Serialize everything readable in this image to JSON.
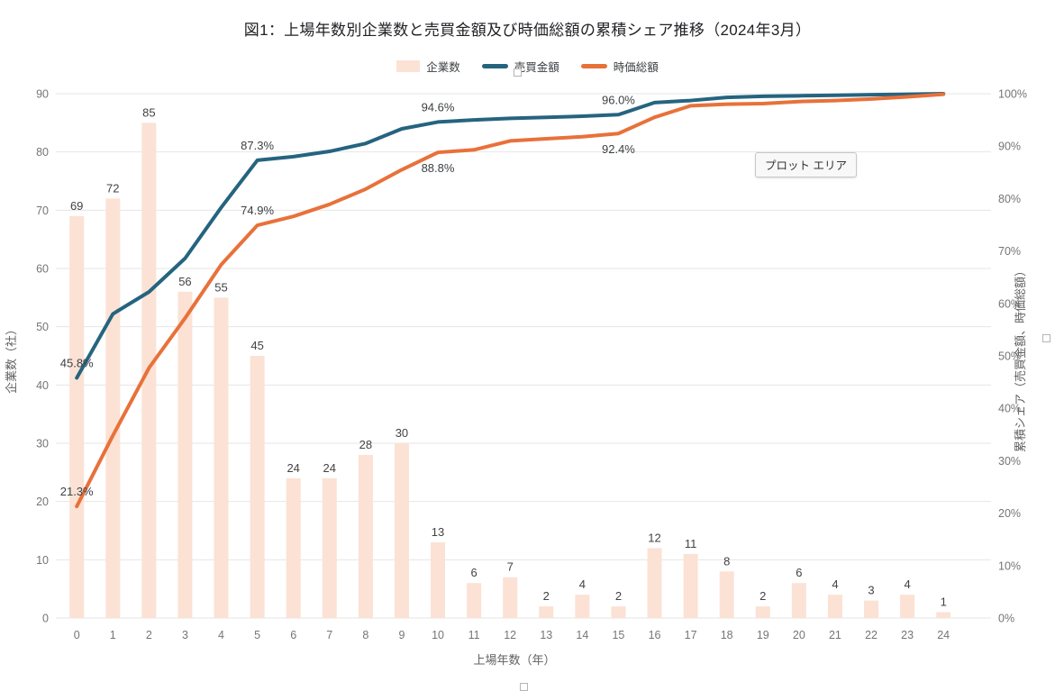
{
  "tooltip": {
    "label": "プロット エリア"
  },
  "chart_data": {
    "type": "combo-bar-line",
    "title": "図1：上場年数別企業数と売買金額及び時価総額の累積シェア推移（2024年3月）",
    "categories": [
      0,
      1,
      2,
      3,
      4,
      5,
      6,
      7,
      8,
      9,
      10,
      11,
      12,
      13,
      14,
      15,
      16,
      17,
      18,
      19,
      20,
      21,
      22,
      23,
      24
    ],
    "x_axis": {
      "title": "上場年数（年）"
    },
    "left_axis": {
      "title": "企業数（社）",
      "min": 0,
      "max": 90,
      "step": 10,
      "tick_labels": [
        "0",
        "10",
        "20",
        "30",
        "40",
        "50",
        "60",
        "70",
        "80",
        "90"
      ]
    },
    "right_axis": {
      "title": "累積シェア（売買金額、時価総額）",
      "min": 0,
      "max": 100,
      "step": 10,
      "tick_labels": [
        "0%",
        "10%",
        "20%",
        "30%",
        "40%",
        "50%",
        "60%",
        "70%",
        "80%",
        "90%",
        "100%"
      ]
    },
    "grid": true,
    "bar_series": {
      "name": "企業数",
      "color": "#fbe2d5",
      "values": [
        69,
        72,
        85,
        56,
        55,
        45,
        24,
        24,
        28,
        30,
        13,
        6,
        7,
        2,
        4,
        2,
        12,
        11,
        8,
        2,
        6,
        4,
        3,
        4,
        1
      ]
    },
    "line_series": [
      {
        "name": "売買金額",
        "color": "#25647f",
        "values": [
          45.8,
          58.0,
          62.2,
          68.6,
          78.3,
          87.3,
          88.0,
          89.0,
          90.5,
          93.3,
          94.6,
          95.0,
          95.3,
          95.5,
          95.7,
          96.0,
          98.3,
          98.7,
          99.3,
          99.5,
          99.6,
          99.7,
          99.8,
          99.9,
          100.0
        ],
        "annotations": [
          {
            "x": 0,
            "label": "45.8%",
            "placement": "above"
          },
          {
            "x": 5,
            "label": "87.3%",
            "placement": "above"
          },
          {
            "x": 10,
            "label": "94.6%",
            "placement": "above"
          },
          {
            "x": 15,
            "label": "96.0%",
            "placement": "above"
          }
        ]
      },
      {
        "name": "時価総額",
        "color": "#e8713a",
        "values": [
          21.3,
          34.8,
          47.7,
          57.2,
          67.4,
          74.9,
          76.6,
          78.9,
          81.8,
          85.5,
          88.8,
          89.3,
          91.0,
          91.4,
          91.8,
          92.4,
          95.5,
          97.7,
          98.0,
          98.1,
          98.5,
          98.7,
          99.0,
          99.4,
          99.9
        ],
        "annotations": [
          {
            "x": 0,
            "label": "21.3%",
            "placement": "above"
          },
          {
            "x": 5,
            "label": "74.9%",
            "placement": "above"
          },
          {
            "x": 10,
            "label": "88.8%",
            "placement": "below"
          },
          {
            "x": 15,
            "label": "92.4%",
            "placement": "below"
          }
        ]
      }
    ],
    "legend": {
      "position": "top",
      "items": [
        {
          "label": "企業数",
          "type": "bar",
          "color": "#fbe2d5"
        },
        {
          "label": "売買金額",
          "type": "line",
          "color": "#25647f"
        },
        {
          "label": "時価総額",
          "type": "line",
          "color": "#e8713a"
        }
      ]
    }
  }
}
